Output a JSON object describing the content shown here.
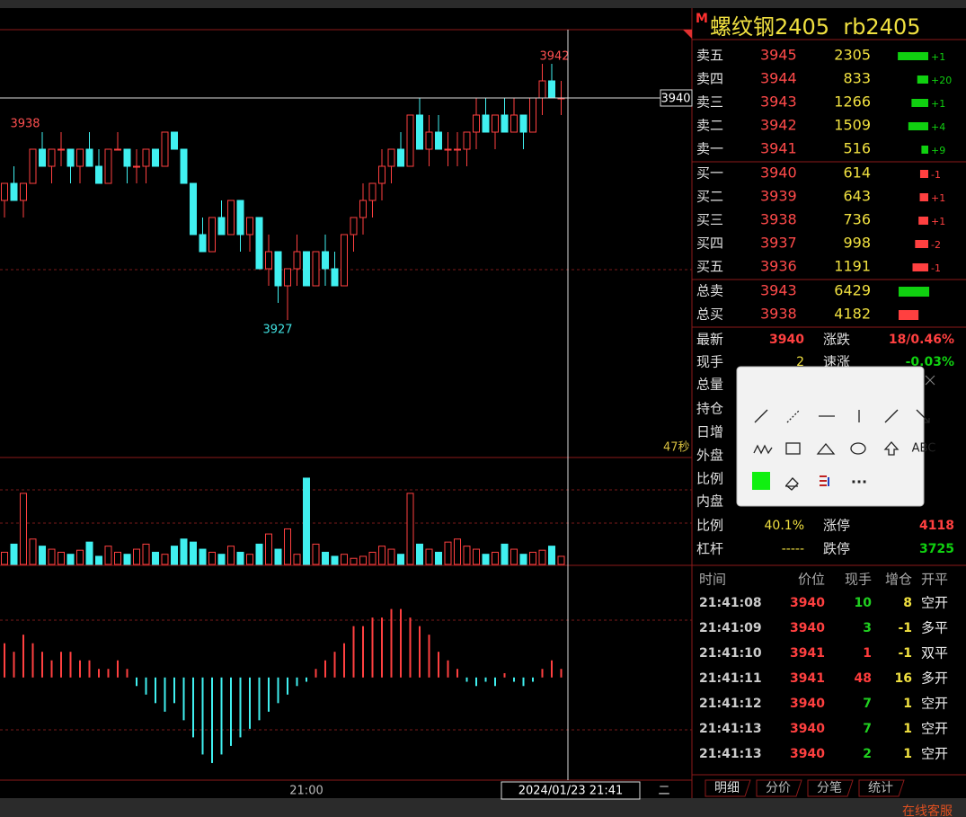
{
  "chart_data": {
    "type": "candlestick",
    "ylim": [
      3919,
      3944
    ],
    "ohlc": [
      [
        3934,
        3935,
        3933,
        3935
      ],
      [
        3935,
        3936,
        3934,
        3934
      ],
      [
        3934,
        3935,
        3933,
        3935
      ],
      [
        3935,
        3937,
        3935,
        3937
      ],
      [
        3937,
        3938,
        3936,
        3936
      ],
      [
        3936,
        3937,
        3935,
        3937
      ],
      [
        3937,
        3938,
        3936,
        3937
      ],
      [
        3937,
        3937,
        3935,
        3936
      ],
      [
        3936,
        3937,
        3935,
        3937
      ],
      [
        3937,
        3938,
        3936,
        3936
      ],
      [
        3936,
        3937,
        3935,
        3935
      ],
      [
        3935,
        3937,
        3935,
        3937
      ],
      [
        3937,
        3938,
        3937,
        3937
      ],
      [
        3937,
        3937,
        3935,
        3936
      ],
      [
        3936,
        3937,
        3935,
        3936
      ],
      [
        3936,
        3937,
        3935,
        3937
      ],
      [
        3937,
        3937,
        3936,
        3936
      ],
      [
        3936,
        3938,
        3936,
        3938
      ],
      [
        3938,
        3938,
        3937,
        3937
      ],
      [
        3937,
        3937,
        3935,
        3935
      ],
      [
        3935,
        3935,
        3932,
        3932
      ],
      [
        3932,
        3933,
        3931,
        3931
      ],
      [
        3931,
        3933,
        3931,
        3933
      ],
      [
        3933,
        3934,
        3932,
        3932
      ],
      [
        3932,
        3934,
        3932,
        3934
      ],
      [
        3934,
        3934,
        3931,
        3932
      ],
      [
        3932,
        3933,
        3931,
        3933
      ],
      [
        3933,
        3933,
        3930,
        3930
      ],
      [
        3930,
        3932,
        3929,
        3931
      ],
      [
        3931,
        3931,
        3928,
        3929
      ],
      [
        3929,
        3930,
        3927,
        3930
      ],
      [
        3930,
        3932,
        3929,
        3931
      ],
      [
        3931,
        3931,
        3929,
        3929
      ],
      [
        3929,
        3931,
        3929,
        3931
      ],
      [
        3931,
        3932,
        3929,
        3930
      ],
      [
        3930,
        3931,
        3929,
        3929
      ],
      [
        3929,
        3932,
        3929,
        3932
      ],
      [
        3932,
        3933,
        3931,
        3933
      ],
      [
        3933,
        3935,
        3932,
        3934
      ],
      [
        3934,
        3935,
        3933,
        3935
      ],
      [
        3935,
        3937,
        3934,
        3936
      ],
      [
        3936,
        3937,
        3935,
        3937
      ],
      [
        3937,
        3938,
        3936,
        3936
      ],
      [
        3936,
        3939,
        3936,
        3939
      ],
      [
        3939,
        3940,
        3937,
        3937
      ],
      [
        3937,
        3939,
        3936,
        3938
      ],
      [
        3938,
        3939,
        3937,
        3937
      ],
      [
        3937,
        3938,
        3936,
        3937
      ],
      [
        3937,
        3938,
        3936,
        3937
      ],
      [
        3937,
        3938,
        3936,
        3938
      ],
      [
        3938,
        3940,
        3937,
        3939
      ],
      [
        3939,
        3940,
        3938,
        3938
      ],
      [
        3938,
        3939,
        3937,
        3939
      ],
      [
        3939,
        3940,
        3938,
        3938
      ],
      [
        3938,
        3940,
        3938,
        3939
      ],
      [
        3939,
        3939,
        3937,
        3938
      ],
      [
        3938,
        3940,
        3938,
        3940
      ],
      [
        3940,
        3942,
        3939,
        3941
      ],
      [
        3941,
        3942,
        3940,
        3940
      ],
      [
        3940,
        3941,
        3939,
        3940
      ]
    ],
    "price_labels": [
      3938,
      3942,
      3927
    ],
    "last_price": 3940,
    "countdown": "47秒",
    "volume_ylim": [
      0,
      100
    ],
    "volume": [
      12,
      20,
      70,
      25,
      18,
      15,
      12,
      10,
      14,
      22,
      8,
      18,
      12,
      10,
      15,
      20,
      12,
      10,
      18,
      25,
      22,
      15,
      12,
      10,
      18,
      12,
      10,
      20,
      30,
      15,
      35,
      10,
      85,
      20,
      12,
      8,
      10,
      6,
      8,
      12,
      18,
      15,
      10,
      70,
      20,
      15,
      12,
      22,
      25,
      18,
      15,
      10,
      12,
      20,
      15,
      10,
      12,
      14,
      18,
      8
    ],
    "macd_ylim": [
      -1.2,
      1.3
    ],
    "macd": [
      0.4,
      0.3,
      0.5,
      0.4,
      0.3,
      0.2,
      0.3,
      0.3,
      0.2,
      0.2,
      0.1,
      0.1,
      0.2,
      0.1,
      -0.1,
      -0.2,
      -0.3,
      -0.4,
      -0.3,
      -0.5,
      -0.7,
      -0.9,
      -1.0,
      -0.9,
      -0.8,
      -0.7,
      -0.6,
      -0.5,
      -0.4,
      -0.3,
      -0.2,
      -0.1,
      -0.05,
      0.1,
      0.2,
      0.3,
      0.4,
      0.6,
      0.6,
      0.7,
      0.7,
      0.8,
      0.8,
      0.7,
      0.6,
      0.5,
      0.3,
      0.2,
      0.1,
      -0.05,
      -0.1,
      -0.05,
      -0.1,
      0.05,
      -0.05,
      -0.1,
      -0.05,
      0.1,
      0.2,
      0.1
    ],
    "x_label": "21:00",
    "cursor_time": "2024/01/23 21:41",
    "weekday": "二"
  },
  "header": {
    "marker": "M",
    "title": "螺纹钢2405  rb2405"
  },
  "order_book": {
    "asks": [
      [
        "卖五",
        3945,
        2305,
        "+1"
      ],
      [
        "卖四",
        3944,
        833,
        "+20"
      ],
      [
        "卖三",
        3943,
        1266,
        "+1"
      ],
      [
        "卖二",
        3942,
        1509,
        "+4"
      ],
      [
        "卖一",
        3941,
        516,
        "+9"
      ]
    ],
    "bids": [
      [
        "买一",
        3940,
        614,
        "-1"
      ],
      [
        "买二",
        3939,
        643,
        "+1"
      ],
      [
        "买三",
        3938,
        736,
        "+1"
      ],
      [
        "买四",
        3937,
        998,
        "-2"
      ],
      [
        "买五",
        3936,
        1191,
        "-1"
      ]
    ],
    "totals": [
      [
        "总卖",
        3943,
        6429
      ],
      [
        "总买",
        3938,
        4182
      ]
    ]
  },
  "stats": {
    "left": [
      [
        "最新",
        3940
      ],
      [
        "现手",
        2
      ],
      [
        "总量"
      ],
      [
        "持仓"
      ],
      [
        "日增"
      ],
      [
        "外盘"
      ],
      [
        "比例"
      ],
      [
        "内盘"
      ],
      [
        "比例",
        "40.1%"
      ],
      [
        "杠杆",
        "-----"
      ]
    ],
    "right": [
      [
        "涨跌",
        "18/0.46%"
      ],
      [
        "速涨",
        "-0.03%"
      ],
      null,
      null,
      null,
      null,
      null,
      null,
      [
        "涨停",
        4118
      ],
      [
        "跌停",
        3725
      ]
    ]
  },
  "trades": {
    "header": [
      "时间",
      "价位",
      "现手",
      "增仓",
      "开平"
    ],
    "rows": [
      [
        "21:41:08",
        3940,
        10,
        8,
        "空开",
        "#20d020"
      ],
      [
        "21:41:09",
        3940,
        3,
        -1,
        "多平",
        "#20d020"
      ],
      [
        "21:41:10",
        3941,
        1,
        -1,
        "双平",
        "#ff3c3c"
      ],
      [
        "21:41:11",
        3941,
        48,
        16,
        "多开",
        "#ff3c3c"
      ],
      [
        "21:41:12",
        3940,
        7,
        1,
        "空开",
        "#20d020"
      ],
      [
        "21:41:13",
        3940,
        7,
        1,
        "空开",
        "#20d020"
      ],
      [
        "21:41:13",
        3940,
        2,
        1,
        "空开",
        "#20d020"
      ]
    ]
  },
  "tabs": [
    "明细",
    "分价",
    "分笔",
    "统计"
  ],
  "popup": {
    "text_tool": "ABC",
    "more": "..."
  },
  "footer": {
    "service": "在线客服"
  }
}
